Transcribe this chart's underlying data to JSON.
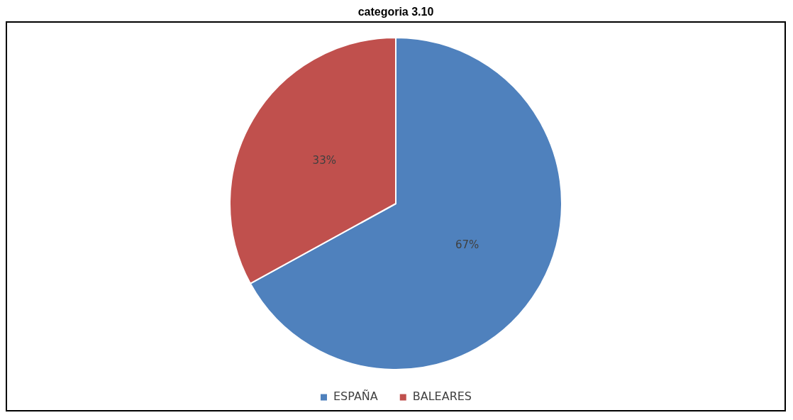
{
  "chart_data": {
    "type": "pie",
    "title": "categoria 3.10",
    "categories": [
      "ESPAÑA",
      "BALEARES"
    ],
    "values": [
      67,
      33
    ],
    "colors": [
      "#4f81bd",
      "#c0504d"
    ],
    "value_labels": [
      "67%",
      "33%"
    ],
    "legend": "bottom"
  }
}
